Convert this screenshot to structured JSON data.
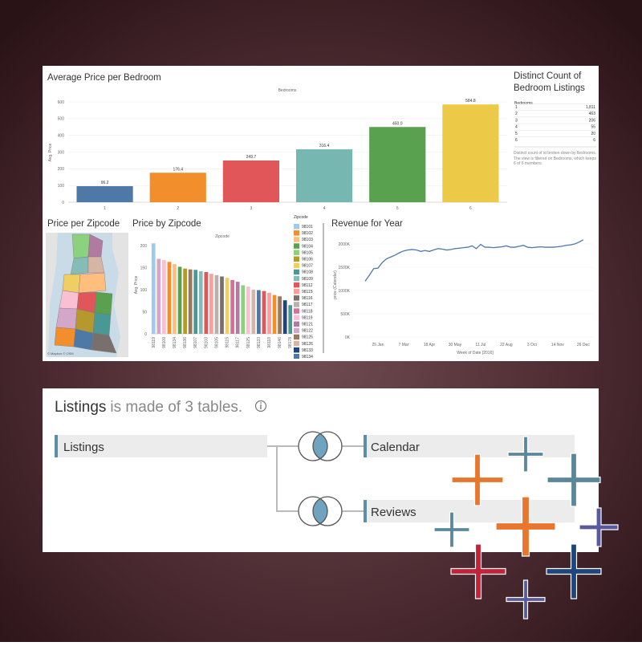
{
  "bedroom_chart": {
    "type": "bar",
    "title": "Average Price per Bedroom",
    "x_label": "Bedrooms",
    "y_label": "Avg. Price",
    "categories": [
      "1",
      "2",
      "3",
      "4",
      "5",
      "6"
    ],
    "values": [
      96.2,
      176.4,
      249.7,
      316.4,
      450.0,
      584.8
    ],
    "value_labels": [
      "96.2",
      "176.4",
      "249.7",
      "316.4",
      "450.0",
      "584.8"
    ],
    "colors": [
      "#4e79a7",
      "#f28e2b",
      "#e15759",
      "#76b7b2",
      "#59a14f",
      "#edc948"
    ],
    "ylim": [
      0,
      600
    ],
    "yticks": [
      0,
      100,
      200,
      300,
      400,
      500,
      600
    ],
    "grid": true
  },
  "bedroom_table": {
    "title": "Distinct Count of Bedroom Listings",
    "header": "Bedrooms",
    "rows": [
      [
        "1",
        "1,811"
      ],
      [
        "2",
        "463"
      ],
      [
        "3",
        "206"
      ],
      [
        "4",
        "55"
      ],
      [
        "5",
        "20"
      ],
      [
        "6",
        "6"
      ]
    ],
    "note": "Distinct count of id broken down by Bedrooms. The view is filtered on Bedrooms, which keeps 6 of 6 members."
  },
  "zip_map": {
    "title": "Price per Zipcode",
    "attribution": "© Mapbox © OSM"
  },
  "zip_chart": {
    "type": "bar",
    "title": "Price by Zipcode",
    "x_label": "Zipcode",
    "y_label": "Avg. Price",
    "categories": [
      "98119",
      null,
      "98109",
      null,
      "98134",
      null,
      "98136",
      null,
      "98107",
      null,
      "98103",
      null,
      "98105",
      null,
      "98115",
      null,
      "98117",
      null,
      "98125",
      null,
      "98133",
      null,
      "98118",
      null,
      "98146",
      null,
      "98178"
    ],
    "values": [
      205,
      170,
      167,
      163,
      158,
      152,
      148,
      146,
      145,
      142,
      140,
      136,
      133,
      130,
      127,
      122,
      118,
      110,
      107,
      100,
      99,
      97,
      93,
      88,
      85,
      76,
      65
    ],
    "colors": [
      "#a0cbe8",
      "#d4a6c8",
      "#fabfd2",
      "#f28e2b",
      "#ffbe7d",
      "#59a14f",
      "#b6992d",
      "#9d7660",
      "#499894",
      "#86bcb6",
      "#e15759",
      "#ff9d9a",
      "#bab0ac",
      "#79706e",
      "#f1ce63",
      "#d37295",
      "#b07aa1",
      "#8cd17d",
      "#fabfd2",
      "#d7b5a6",
      "#4e79a7",
      "#e15759",
      "#ff9d9a",
      "#f28e2b",
      "#9d7660",
      "#1f457e",
      "#499894"
    ],
    "ylim": [
      0,
      215
    ],
    "yticks": [
      0,
      50,
      100,
      150,
      200
    ],
    "legend": {
      "title": "Zipcode",
      "items": [
        {
          "name": "98101",
          "color": "#a0cbe8"
        },
        {
          "name": "98102",
          "color": "#f28e2b"
        },
        {
          "name": "98103",
          "color": "#ffbe7d"
        },
        {
          "name": "98104",
          "color": "#59a14f"
        },
        {
          "name": "98105",
          "color": "#8cd17d"
        },
        {
          "name": "98106",
          "color": "#b6992d"
        },
        {
          "name": "98107",
          "color": "#f1ce63"
        },
        {
          "name": "98108",
          "color": "#499894"
        },
        {
          "name": "98109",
          "color": "#86bcb6"
        },
        {
          "name": "98112",
          "color": "#e15759"
        },
        {
          "name": "98115",
          "color": "#ff9d9a"
        },
        {
          "name": "98116",
          "color": "#79706e"
        },
        {
          "name": "98117",
          "color": "#bab0ac"
        },
        {
          "name": "98118",
          "color": "#d37295"
        },
        {
          "name": "98119",
          "color": "#fabfd2"
        },
        {
          "name": "98121",
          "color": "#b07aa1"
        },
        {
          "name": "98122",
          "color": "#d4a6c8"
        },
        {
          "name": "98125",
          "color": "#9d7660"
        },
        {
          "name": "98126",
          "color": "#d7b5a6"
        },
        {
          "name": "98133",
          "color": "#1f457e"
        },
        {
          "name": "98134",
          "color": "#4e79a7"
        }
      ]
    }
  },
  "revenue_chart": {
    "type": "line",
    "title": "Revenue for Year",
    "x_label": "Week of Date [2016]",
    "y_label": "price (Calendar)",
    "x": [
      "4 Jan",
      "11 Jan",
      "18 Jan",
      "25 Jan",
      "1 Feb",
      "8 Feb",
      "15 Feb",
      "22 Feb",
      "29 Feb",
      "7 Mar",
      "14 Mar",
      "21 Mar",
      "28 Mar",
      "4 Apr",
      "11 Apr",
      "18 Apr",
      "25 Apr",
      "2 May",
      "9 May",
      "16 May",
      "23 May",
      "30 May",
      "6 Jun",
      "13 Jun",
      "20 Jun",
      "27 Jun",
      "4 Jul",
      "11 Jul",
      "18 Jul",
      "25 Jul",
      "1 Aug",
      "8 Aug",
      "15 Aug",
      "22 Aug",
      "29 Aug",
      "5 Sep",
      "12 Sep",
      "19 Sep",
      "26 Sep",
      "3 Oct",
      "10 Oct",
      "17 Oct",
      "24 Oct",
      "31 Oct",
      "7 Nov",
      "14 Nov",
      "21 Nov",
      "28 Nov",
      "5 Dec",
      "12 Dec",
      "19 Dec",
      "26 Dec"
    ],
    "series": [
      {
        "color": "#4e79a7",
        "values": [
          1200000,
          1330000,
          1470000,
          1480000,
          1600000,
          1680000,
          1720000,
          1760000,
          1810000,
          1850000,
          1870000,
          1880000,
          1870000,
          1840000,
          1860000,
          1840000,
          1870000,
          1900000,
          1890000,
          1870000,
          1880000,
          1900000,
          1910000,
          1920000,
          1930000,
          1960000,
          1900000,
          1990000,
          1930000,
          1930000,
          1920000,
          1930000,
          1940000,
          1960000,
          1930000,
          1930000,
          1950000,
          1970000,
          1930000,
          1920000,
          1930000,
          1940000,
          1930000,
          1930000,
          1930000,
          1940000,
          1950000,
          1970000,
          1980000,
          2000000,
          2040000,
          2090000
        ]
      }
    ],
    "ylim": [
      0,
      2150000
    ],
    "yticks": [
      {
        "value": 0,
        "label": "0K"
      },
      {
        "value": 500000,
        "label": "500K"
      },
      {
        "value": 1000000,
        "label": "1000K"
      },
      {
        "value": 1500000,
        "label": "1500K"
      },
      {
        "value": 2000000,
        "label": "2000K"
      }
    ],
    "grid": true
  },
  "data_source": {
    "title": {
      "source": "Listings",
      "suffix": "is made of 3 tables."
    },
    "tables": {
      "left": "Listings",
      "right": [
        "Calendar",
        "Reviews"
      ]
    }
  }
}
